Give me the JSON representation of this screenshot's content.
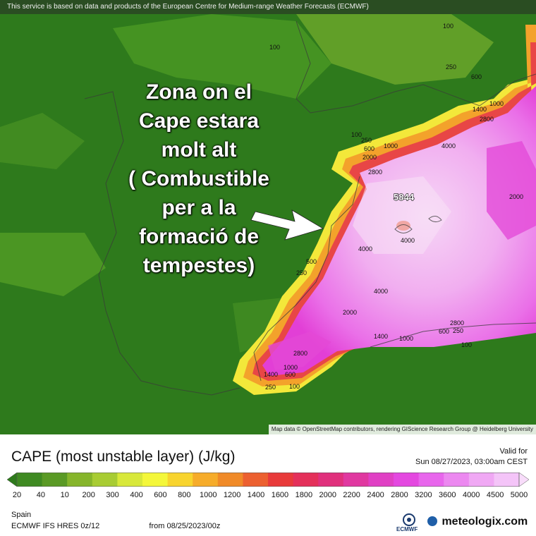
{
  "header": {
    "banner": "This service is based on data and products of the European Centre for Medium-range Weather Forecasts (ECMWF)",
    "attribution": "Map data © OpenStreetMap contributors, rendering GIScience Research Group @ Heidelberg University"
  },
  "annotation": {
    "lines": [
      "Zona on el",
      "Cape estara",
      "molt alt",
      "( Combustible",
      "per a la",
      "formació de",
      "tempestes)"
    ]
  },
  "map_labels": [
    "100",
    "100",
    "250",
    "600",
    "1400",
    "1000",
    "2800",
    "100",
    "250",
    "600",
    "1000",
    "2000",
    "2800",
    "4000",
    "5844",
    "4000",
    "2000",
    "4000",
    "4000",
    "500",
    "250",
    "2000",
    "1400",
    "1000",
    "2800",
    "600",
    "250",
    "100",
    "2800",
    "1400",
    "1000",
    "600",
    "250",
    "100"
  ],
  "legend": {
    "title": "CAPE",
    "title_unit": "(most unstable layer) (J/kg)",
    "valid_label": "Valid for",
    "valid_date": "Sun 08/27/2023, 03:00am CEST",
    "ticks": [
      "20",
      "40",
      "10",
      "200",
      "300",
      "400",
      "600",
      "800",
      "1000",
      "1200",
      "1400",
      "1600",
      "1800",
      "2000",
      "2200",
      "2400",
      "2800",
      "3200",
      "3600",
      "4000",
      "4500",
      "5000"
    ],
    "colors": [
      "#2e7a1c",
      "#3f8a22",
      "#5a9a25",
      "#86b52b",
      "#a8cc33",
      "#d8e83a",
      "#f4f73a",
      "#f8d42e",
      "#f6ac2a",
      "#f08a28",
      "#ec6030",
      "#e83a3a",
      "#e4305a",
      "#e0307c",
      "#e038a0",
      "#e040c4",
      "#e448e0",
      "#e866ec",
      "#ec88f0",
      "#f0a8f4",
      "#f4c4f8",
      "#f8dcfa"
    ],
    "region": "Spain",
    "model_run_prefix": "ECMWF IFS HRES 0z/12",
    "model_run_from": "from 08/25/2023/00z",
    "ecmwf_label": "ECMWF",
    "brand": "meteologix.com"
  }
}
